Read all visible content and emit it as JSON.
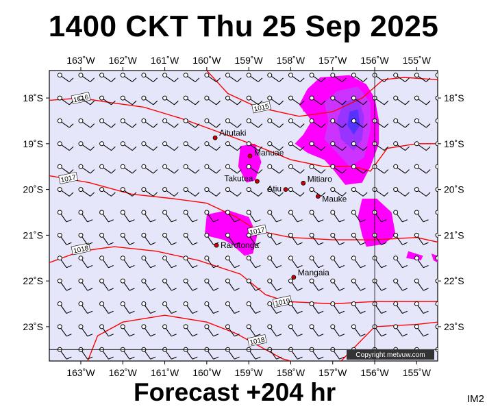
{
  "header": {
    "title": "1400 CKT Thu 25 Sep 2025"
  },
  "footer": {
    "forecast_label": "Forecast +204 hr",
    "image_code": "IM2"
  },
  "copyright": "Copyright metvuw.com",
  "colors": {
    "sea": "#e6e6fa",
    "isobar": "#ff0000",
    "rain_light": "#ff00ff",
    "rain_medium": "#cc33ff",
    "rain_heavy": "#9933ff",
    "rain_extreme": "#5533ff"
  },
  "map": {
    "lon_min": -163.75,
    "lon_max": -154.5,
    "lat_min": -23.75,
    "lat_max": -17.4,
    "lon_ticks": [
      "163˚W",
      "162˚W",
      "161˚W",
      "160˚W",
      "159˚W",
      "158˚W",
      "157˚W",
      "156˚W",
      "155˚W"
    ],
    "lat_ticks": [
      "18˚S",
      "19˚S",
      "20˚S",
      "21˚S",
      "22˚S",
      "23˚S"
    ],
    "reference_lines": {
      "lon": -156,
      "lat": -23.5
    }
  },
  "isobars": [
    {
      "label": "1015",
      "label_pos": [
        -158.7,
        -18.2
      ],
      "points": [
        [
          -160,
          -17.4
        ],
        [
          -159.5,
          -17.9
        ],
        [
          -158.8,
          -18.2
        ],
        [
          -157.8,
          -18.4
        ],
        [
          -157,
          -18.3
        ],
        [
          -156.3,
          -18.0
        ],
        [
          -155.8,
          -17.6
        ],
        [
          -155.3,
          -17.55
        ],
        [
          -154.5,
          -17.6
        ]
      ]
    },
    {
      "label": "1016",
      "label_pos": [
        -163.0,
        -18.0
      ],
      "points": [
        [
          -163.75,
          -18.05
        ],
        [
          -163,
          -18.0
        ],
        [
          -162.3,
          -18.1
        ],
        [
          -161.5,
          -18.2
        ],
        [
          -160.6,
          -18.45
        ],
        [
          -159.7,
          -18.75
        ],
        [
          -158.8,
          -19.05
        ],
        [
          -158.0,
          -19.35
        ],
        [
          -157.2,
          -19.5
        ],
        [
          -156.5,
          -19.5
        ],
        [
          -156.1,
          -19.6
        ],
        [
          -155.7,
          -19.1
        ],
        [
          -155.0,
          -19.0
        ],
        [
          -154.5,
          -19.0
        ]
      ]
    },
    {
      "label": "1017",
      "label_pos": [
        -163.3,
        -19.75
      ],
      "points": [
        [
          -163.75,
          -19.7
        ],
        [
          -162.8,
          -19.85
        ],
        [
          -161.8,
          -20.1
        ],
        [
          -160.8,
          -20.2
        ],
        [
          -160.0,
          -20.3
        ],
        [
          -159.3,
          -20.6
        ],
        [
          -158.8,
          -20.9
        ],
        [
          -158.0,
          -21.05
        ],
        [
          -157.0,
          -21.1
        ],
        [
          -156.0,
          -21.1
        ],
        [
          -155.0,
          -21.05
        ],
        [
          -154.5,
          -21.15
        ]
      ]
    },
    {
      "label": "1017",
      "label_pos": [
        -158.8,
        -20.9
      ],
      "points": []
    },
    {
      "label": "1018",
      "label_pos": [
        -163.0,
        -21.3
      ],
      "points": [
        [
          -163.75,
          -21.6
        ],
        [
          -163.0,
          -21.35
        ],
        [
          -162.2,
          -21.25
        ],
        [
          -161.2,
          -21.35
        ],
        [
          -160.2,
          -21.55
        ],
        [
          -159.2,
          -21.85
        ],
        [
          -158.6,
          -22.3
        ],
        [
          -158.1,
          -22.45
        ],
        [
          -157.0,
          -22.5
        ],
        [
          -156.0,
          -22.45
        ],
        [
          -155.0,
          -22.45
        ],
        [
          -154.5,
          -22.45
        ]
      ]
    },
    {
      "label": "1019",
      "label_pos": [
        -158.2,
        -22.45
      ],
      "points": []
    },
    {
      "label": "1018",
      "label_pos": [
        -158.8,
        -23.3
      ],
      "points": [
        [
          -162.9,
          -23.9
        ],
        [
          -162.6,
          -23.2
        ],
        [
          -162.0,
          -22.9
        ],
        [
          -161.0,
          -22.75
        ],
        [
          -160.0,
          -22.9
        ],
        [
          -159.3,
          -23.15
        ],
        [
          -158.7,
          -23.45
        ],
        [
          -158.2,
          -23.7
        ],
        [
          -158.0,
          -23.75
        ]
      ]
    },
    {
      "label": "",
      "label_pos": [
        0,
        0
      ],
      "points": [
        [
          -156.8,
          -23.75
        ],
        [
          -156.0,
          -23.0
        ],
        [
          -155.0,
          -22.95
        ],
        [
          -154.5,
          -22.9
        ]
      ]
    }
  ],
  "places": [
    {
      "name": "Aitutaki",
      "lon": -159.8,
      "lat": -18.87,
      "label_dx": 6,
      "label_dy": -3
    },
    {
      "name": "Manuae",
      "lon": -158.97,
      "lat": -19.27,
      "label_dx": 6,
      "label_dy": -1
    },
    {
      "name": "Takutea",
      "lon": -158.8,
      "lat": -19.82,
      "label_dx": -6,
      "label_dy": 0
    },
    {
      "name": "Atiu",
      "lon": -158.12,
      "lat": -20.0,
      "label_dx": -6,
      "label_dy": 3
    },
    {
      "name": "Mitiaro",
      "lon": -157.7,
      "lat": -19.86,
      "label_dx": 6,
      "label_dy": -2
    },
    {
      "name": "Mauke",
      "lon": -157.35,
      "lat": -20.15,
      "label_dx": 6,
      "label_dy": 8
    },
    {
      "name": "Rarotonga",
      "lon": -159.77,
      "lat": -21.22,
      "label_dx": 6,
      "label_dy": 4
    },
    {
      "name": "Mangaia",
      "lon": -157.93,
      "lat": -21.92,
      "label_dx": 6,
      "label_dy": -3
    }
  ],
  "rain": [
    {
      "level": "light",
      "points": [
        [
          -157.3,
          -17.55
        ],
        [
          -156.6,
          -17.5
        ],
        [
          -156.2,
          -17.7
        ],
        [
          -156.0,
          -18.0
        ],
        [
          -155.9,
          -18.5
        ],
        [
          -155.9,
          -19.0
        ],
        [
          -156.1,
          -19.5
        ],
        [
          -156.3,
          -19.85
        ],
        [
          -156.7,
          -19.9
        ],
        [
          -157.0,
          -19.55
        ],
        [
          -157.2,
          -19.35
        ],
        [
          -157.6,
          -19.2
        ],
        [
          -157.9,
          -19.0
        ],
        [
          -157.7,
          -18.8
        ],
        [
          -157.5,
          -18.5
        ],
        [
          -157.8,
          -18.15
        ],
        [
          -157.6,
          -17.8
        ]
      ]
    },
    {
      "level": "medium",
      "points": [
        [
          -156.9,
          -17.85
        ],
        [
          -156.4,
          -17.75
        ],
        [
          -156.1,
          -18.1
        ],
        [
          -156.1,
          -18.7
        ],
        [
          -156.25,
          -19.3
        ],
        [
          -156.6,
          -19.5
        ],
        [
          -156.9,
          -19.2
        ],
        [
          -157.2,
          -18.9
        ],
        [
          -157.1,
          -18.5
        ],
        [
          -157.2,
          -18.1
        ]
      ]
    },
    {
      "level": "heavy",
      "points": [
        [
          -156.75,
          -18.1
        ],
        [
          -156.4,
          -18.0
        ],
        [
          -156.25,
          -18.4
        ],
        [
          -156.3,
          -18.9
        ],
        [
          -156.5,
          -19.15
        ],
        [
          -156.8,
          -18.9
        ],
        [
          -156.9,
          -18.5
        ]
      ]
    },
    {
      "level": "extreme",
      "points": [
        [
          -156.6,
          -18.3
        ],
        [
          -156.4,
          -18.25
        ],
        [
          -156.35,
          -18.6
        ],
        [
          -156.5,
          -18.8
        ],
        [
          -156.65,
          -18.6
        ]
      ]
    },
    {
      "level": "light",
      "points": [
        [
          -159.2,
          -19.05
        ],
        [
          -158.85,
          -19.0
        ],
        [
          -158.7,
          -19.4
        ],
        [
          -158.85,
          -19.8
        ],
        [
          -159.05,
          -19.85
        ],
        [
          -159.25,
          -19.5
        ]
      ]
    },
    {
      "level": "light",
      "points": [
        [
          -160.0,
          -20.55
        ],
        [
          -159.5,
          -20.45
        ],
        [
          -159.0,
          -20.6
        ],
        [
          -158.8,
          -21.0
        ],
        [
          -158.9,
          -21.4
        ],
        [
          -159.1,
          -21.45
        ],
        [
          -159.4,
          -21.2
        ],
        [
          -159.6,
          -21.1
        ],
        [
          -160.05,
          -21.0
        ]
      ]
    },
    {
      "level": "light",
      "points": [
        [
          -156.3,
          -20.2
        ],
        [
          -155.95,
          -20.2
        ],
        [
          -155.6,
          -20.5
        ],
        [
          -155.5,
          -21.0
        ],
        [
          -155.8,
          -21.2
        ],
        [
          -156.2,
          -21.25
        ],
        [
          -156.3,
          -21.0
        ],
        [
          -156.4,
          -20.6
        ]
      ]
    },
    {
      "level": "light",
      "points": [
        [
          -155.2,
          -21.35
        ],
        [
          -154.85,
          -21.45
        ],
        [
          -154.9,
          -21.55
        ],
        [
          -155.25,
          -21.5
        ]
      ]
    },
    {
      "level": "light",
      "points": [
        [
          -154.65,
          -21.4
        ],
        [
          -154.5,
          -21.45
        ],
        [
          -154.5,
          -21.6
        ],
        [
          -154.6,
          -21.55
        ]
      ]
    },
    {
      "level": "light",
      "points": [
        [
          -157.7,
          -18.15
        ],
        [
          -157.62,
          -18.12
        ],
        [
          -157.62,
          -18.28
        ],
        [
          -157.7,
          -18.3
        ]
      ]
    }
  ]
}
